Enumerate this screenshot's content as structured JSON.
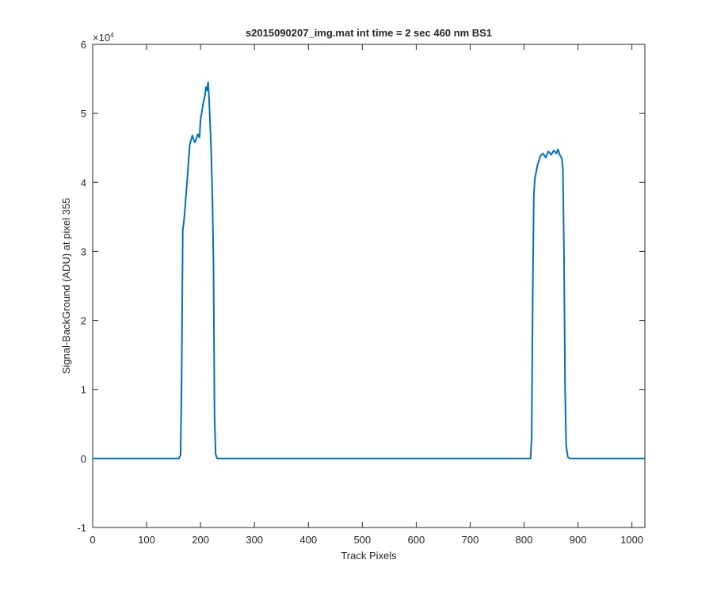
{
  "chart_data": {
    "type": "line",
    "title": "s2015090207_img.mat int time = 2 sec  460 nm BS1",
    "xlabel": "Track Pixels",
    "ylabel": "Signal-BackGround (ADU) at pixel 355",
    "xlim": [
      0,
      1024
    ],
    "ylim": [
      -10000,
      60000
    ],
    "xticks": [
      0,
      100,
      200,
      300,
      400,
      500,
      600,
      700,
      800,
      900,
      1000
    ],
    "yticks": [
      -10000,
      0,
      10000,
      20000,
      30000,
      40000,
      50000,
      60000
    ],
    "ytick_labels": [
      "-1",
      "0",
      "1",
      "2",
      "3",
      "4",
      "5",
      "6"
    ],
    "y_exponent_label": "×10",
    "y_exponent_power": "4",
    "grid": false,
    "line_color": "#0072BD",
    "series": [
      {
        "x": [
          0,
          100,
          160,
          163,
          165,
          167,
          170,
          175,
          180,
          185,
          188,
          190,
          195,
          198,
          200,
          203,
          205,
          208,
          210,
          212,
          214,
          216,
          218,
          220,
          222,
          224,
          226,
          228,
          231,
          235,
          300,
          400,
          500,
          600,
          700,
          800,
          812,
          814,
          816,
          818,
          820,
          825,
          830,
          835,
          840,
          845,
          850,
          855,
          860,
          863,
          866,
          870,
          872,
          874,
          876,
          878,
          881,
          885,
          950,
          1024
        ],
        "y": [
          0,
          0,
          0,
          500,
          12000,
          33000,
          35000,
          40000,
          45500,
          46800,
          46000,
          45800,
          47000,
          46500,
          49000,
          50500,
          51500,
          52500,
          53800,
          53300,
          54500,
          52000,
          48000,
          44000,
          38000,
          28000,
          6000,
          600,
          0,
          0,
          0,
          0,
          0,
          0,
          0,
          0,
          0,
          3000,
          23000,
          38000,
          40500,
          42500,
          43800,
          44200,
          43600,
          44500,
          44000,
          44600,
          44200,
          44800,
          44000,
          43500,
          42000,
          30000,
          10000,
          2000,
          200,
          0,
          0,
          0
        ]
      }
    ]
  }
}
